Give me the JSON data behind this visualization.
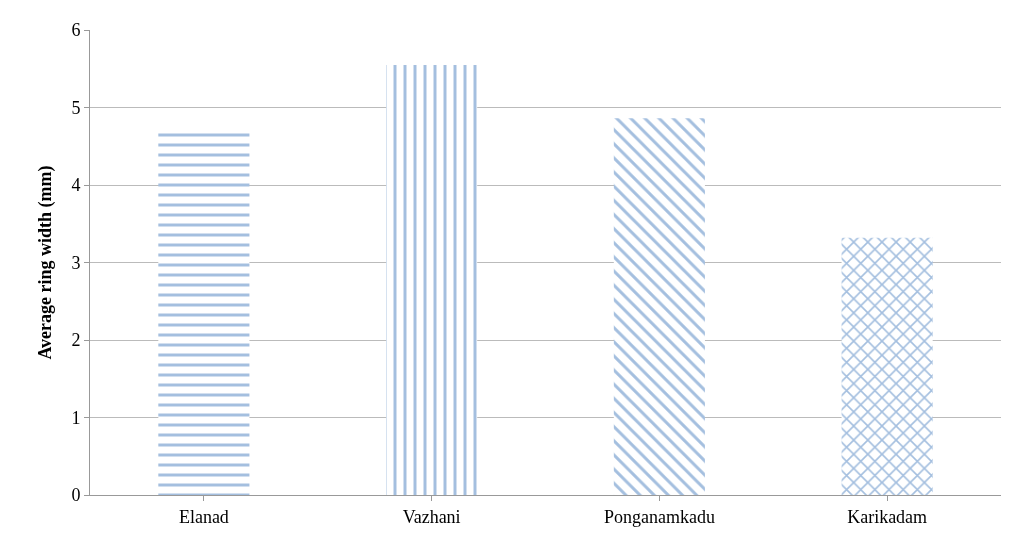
{
  "chart_data": {
    "type": "bar",
    "ylabel": "Average ring width (mm)",
    "categories": [
      "Elanad",
      "Vazhani",
      "Ponganamkadu",
      "Karikadam"
    ],
    "values": [
      4.68,
      5.55,
      4.86,
      3.32
    ],
    "color": "#4a7fc0",
    "ylim": [
      0,
      6
    ],
    "yticks": [
      0,
      1,
      2,
      3,
      4,
      5,
      6
    ],
    "grid": "y"
  }
}
